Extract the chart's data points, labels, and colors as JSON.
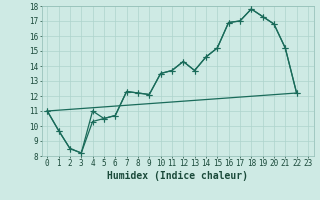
{
  "xlabel": "Humidex (Indice chaleur)",
  "bg_color": "#ceeae4",
  "grid_color": "#aed4cc",
  "line_color": "#1a6b5a",
  "xlim": [
    -0.5,
    23.5
  ],
  "ylim": [
    8,
    18
  ],
  "xticks": [
    0,
    1,
    2,
    3,
    4,
    5,
    6,
    7,
    8,
    9,
    10,
    11,
    12,
    13,
    14,
    15,
    16,
    17,
    18,
    19,
    20,
    21,
    22,
    23
  ],
  "yticks": [
    8,
    9,
    10,
    11,
    12,
    13,
    14,
    15,
    16,
    17,
    18
  ],
  "line1_x": [
    0,
    1,
    2,
    3,
    4,
    5,
    6,
    7,
    8,
    9,
    10,
    11,
    12,
    13,
    14,
    15,
    16,
    17,
    18,
    19,
    20,
    21,
    22
  ],
  "line1_y": [
    11.0,
    9.7,
    8.5,
    8.2,
    11.0,
    10.5,
    10.7,
    12.3,
    12.2,
    12.1,
    13.5,
    13.7,
    14.3,
    13.7,
    14.6,
    15.2,
    16.9,
    17.0,
    17.8,
    17.3,
    16.8,
    15.2,
    12.2
  ],
  "line2_x": [
    0,
    1,
    2,
    3,
    4,
    5,
    6,
    7,
    8,
    9,
    10,
    11,
    12,
    13,
    14,
    15,
    16,
    17,
    18,
    19,
    20,
    21,
    22
  ],
  "line2_y": [
    11.0,
    9.7,
    8.5,
    8.2,
    10.3,
    10.5,
    10.7,
    12.3,
    12.2,
    12.1,
    13.5,
    13.7,
    14.3,
    13.7,
    14.6,
    15.2,
    16.9,
    17.0,
    17.8,
    17.3,
    16.8,
    15.2,
    12.2
  ],
  "line3_x": [
    0,
    22
  ],
  "line3_y": [
    11.0,
    12.2
  ],
  "marker_size": 4,
  "linewidth": 0.9,
  "font_size_label": 7,
  "font_size_tick": 5.5
}
